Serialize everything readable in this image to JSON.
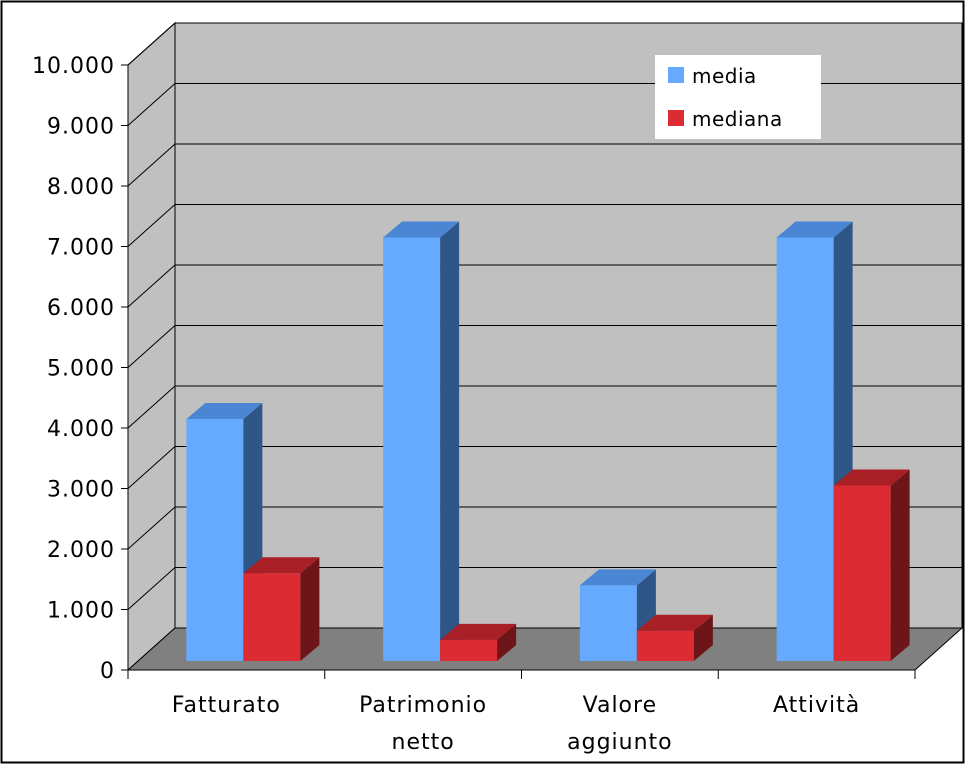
{
  "chart_data": {
    "type": "bar",
    "title": "",
    "xlabel": "",
    "ylabel": "",
    "categories": [
      [
        "Fatturato"
      ],
      [
        "Patrimonio",
        "netto"
      ],
      [
        "Valore",
        "aggiunto"
      ],
      [
        "Attività"
      ]
    ],
    "series": [
      {
        "name": "media",
        "values": [
          4000,
          7000,
          1250,
          7000
        ],
        "color": "#66aaff",
        "side_color": "#2e5686",
        "top_color": "#4a86d4"
      },
      {
        "name": "mediana",
        "values": [
          1450,
          350,
          500,
          2900
        ],
        "color": "#dd2b33",
        "side_color": "#6e1519",
        "top_color": "#a81f26"
      }
    ],
    "ylim": [
      0,
      10000
    ],
    "yticks": [
      0,
      1000,
      2000,
      3000,
      4000,
      5000,
      6000,
      7000,
      8000,
      9000,
      10000
    ],
    "ytick_labels": [
      "0",
      "1.000",
      "2.000",
      "3.000",
      "4.000",
      "5.000",
      "6.000",
      "7.000",
      "8.000",
      "9.000",
      "10.000"
    ],
    "grid": true,
    "projection": "3d",
    "legend_position": "top-right",
    "colors": {
      "wall": "#c0c0c0",
      "floor": "#808080",
      "gridline": "#000000"
    }
  }
}
